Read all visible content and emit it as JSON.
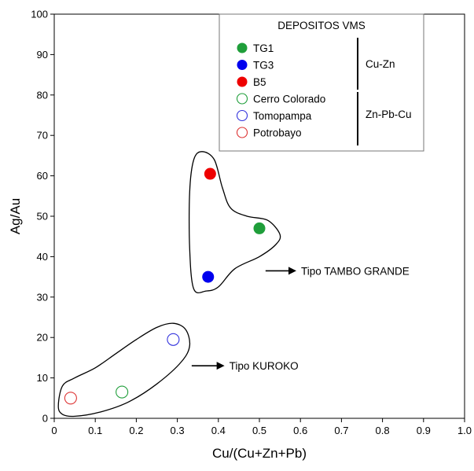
{
  "chart_data": {
    "type": "scatter",
    "xlabel": "Cu/(Cu+Zn+Pb)",
    "ylabel": "Ag/Au",
    "xlim": [
      0,
      1.0
    ],
    "ylim": [
      0,
      100
    ],
    "x_ticks": [
      "0",
      "0.1",
      "0.2",
      "0.3",
      "0.4",
      "0.5",
      "0.6",
      "0.7",
      "0.8",
      "0.9",
      "1.0"
    ],
    "y_ticks": [
      "0",
      "10",
      "20",
      "30",
      "40",
      "50",
      "60",
      "70",
      "80",
      "90",
      "100"
    ],
    "series": [
      {
        "name": "TG1",
        "color": "#1f9e3a",
        "filled": true,
        "points": [
          {
            "x": 0.5,
            "y": 47
          }
        ]
      },
      {
        "name": "TG3",
        "color": "#0000ee",
        "filled": true,
        "points": [
          {
            "x": 0.375,
            "y": 35
          }
        ]
      },
      {
        "name": "B5",
        "color": "#ee0000",
        "filled": true,
        "points": [
          {
            "x": 0.38,
            "y": 60.5
          }
        ]
      },
      {
        "name": "Cerro Colorado",
        "color": "#1f9e3a",
        "filled": false,
        "points": [
          {
            "x": 0.165,
            "y": 6.5
          }
        ]
      },
      {
        "name": "Tomopampa",
        "color": "#3333dd",
        "filled": false,
        "points": [
          {
            "x": 0.29,
            "y": 19.5
          }
        ]
      },
      {
        "name": "Potrobayo",
        "color": "#dd3333",
        "filled": false,
        "points": [
          {
            "x": 0.04,
            "y": 5
          }
        ]
      }
    ],
    "legend": {
      "title": "DEPOSITOS VMS",
      "placement": "top-right",
      "groups": [
        {
          "label": "Cu-Zn",
          "members": [
            "TG1",
            "TG3",
            "B5"
          ]
        },
        {
          "label": "Zn-Pb-Cu",
          "members": [
            "Cerro Colorado",
            "Tomopampa",
            "Potrobayo"
          ]
        }
      ]
    },
    "annotations": [
      {
        "text": "Tipo TAMBO GRANDE",
        "arrow_from": {
          "x": 0.515,
          "y": 36.5
        },
        "arrow_to": {
          "x": 0.59,
          "y": 36.5
        }
      },
      {
        "text": "Tipo KUROKO",
        "arrow_from": {
          "x": 0.335,
          "y": 13
        },
        "arrow_to": {
          "x": 0.415,
          "y": 13
        }
      }
    ],
    "enclosures": [
      {
        "label": "Tipo TAMBO GRANDE",
        "points": [
          [
            0.34,
            32
          ],
          [
            0.33,
            42
          ],
          [
            0.33,
            56
          ],
          [
            0.34,
            64
          ],
          [
            0.36,
            66
          ],
          [
            0.39,
            64
          ],
          [
            0.41,
            57
          ],
          [
            0.43,
            52
          ],
          [
            0.47,
            50
          ],
          [
            0.52,
            49
          ],
          [
            0.55,
            45.5
          ],
          [
            0.54,
            43
          ],
          [
            0.5,
            40
          ],
          [
            0.44,
            37
          ],
          [
            0.4,
            32.5
          ],
          [
            0.37,
            31.5
          ]
        ]
      },
      {
        "label": "Tipo KUROKO",
        "points": [
          [
            0.01,
            3
          ],
          [
            0.02,
            8
          ],
          [
            0.05,
            10
          ],
          [
            0.1,
            12.5
          ],
          [
            0.15,
            16
          ],
          [
            0.2,
            19.5
          ],
          [
            0.25,
            22.5
          ],
          [
            0.29,
            23.5
          ],
          [
            0.32,
            22
          ],
          [
            0.33,
            18
          ],
          [
            0.31,
            14
          ],
          [
            0.25,
            8.5
          ],
          [
            0.18,
            4
          ],
          [
            0.11,
            1.5
          ],
          [
            0.05,
            0.5
          ],
          [
            0.02,
            1
          ]
        ]
      }
    ]
  }
}
